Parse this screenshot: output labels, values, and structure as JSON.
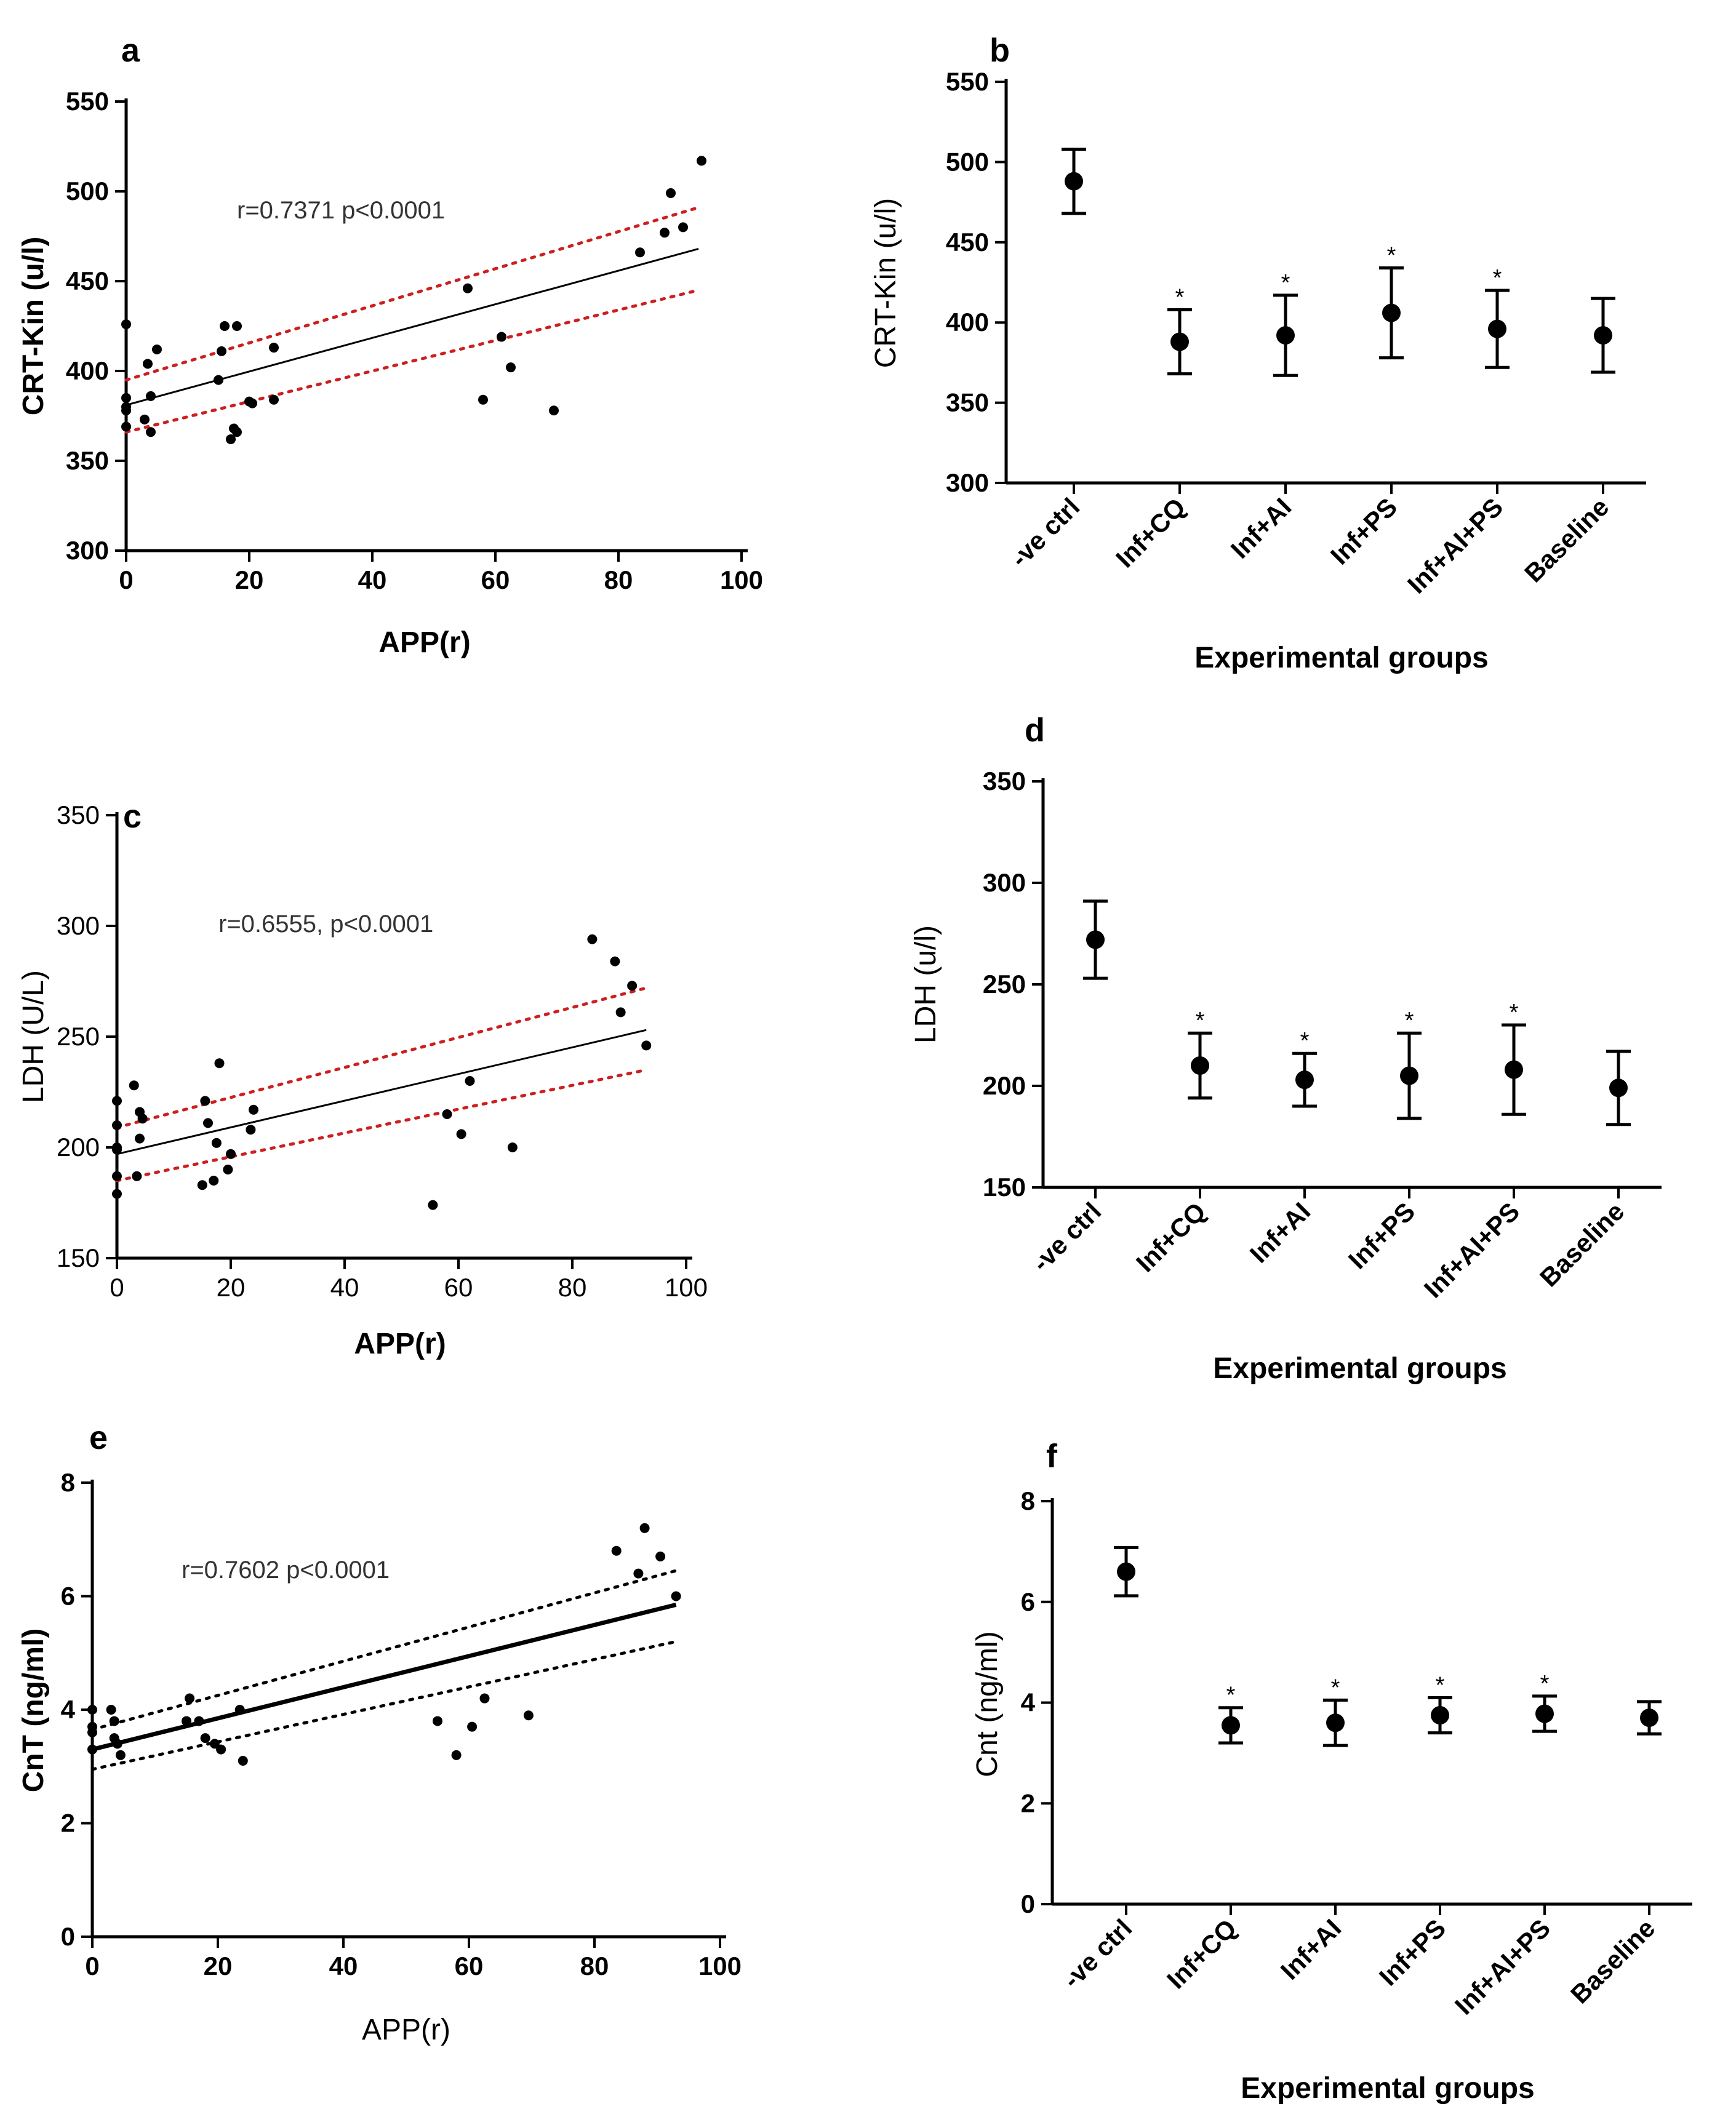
{
  "chart_data": [
    {
      "panel": "a",
      "type": "scatter",
      "xlabel": "APP(r)",
      "ylabel": "CRT-Kin (u/l)",
      "xlim": [
        0,
        100
      ],
      "ylim": [
        300,
        550
      ],
      "xticks": [
        0,
        20,
        40,
        60,
        80,
        100
      ],
      "yticks": [
        300,
        350,
        400,
        450,
        500,
        550
      ],
      "annotation": "r=0.7371 p<0.0001",
      "band_color": "#cc1f1f",
      "fit": {
        "x": [
          0,
          93
        ],
        "y": [
          381,
          468
        ]
      },
      "band_upper": {
        "x": [
          0,
          93
        ],
        "y": [
          395,
          491
        ]
      },
      "band_lower": {
        "x": [
          0,
          93
        ],
        "y": [
          366,
          445
        ]
      },
      "x": [
        0,
        0,
        0,
        0,
        0,
        3,
        3.5,
        4,
        4,
        5,
        15,
        15.5,
        16,
        17,
        17.5,
        18,
        18,
        20,
        20.5,
        24,
        24,
        55.5,
        58,
        61,
        62.5,
        69.5,
        83.5,
        87.5,
        88.5,
        90.5,
        93.5
      ],
      "y": [
        426,
        385,
        380,
        378,
        369,
        373,
        404,
        366,
        386,
        412,
        395,
        411,
        425,
        362,
        368,
        425,
        366,
        383,
        382,
        413,
        384,
        446,
        384,
        419,
        402,
        378,
        466,
        477,
        499,
        480,
        517
      ]
    },
    {
      "panel": "b",
      "type": "errorbar",
      "xlabel": "Experimental groups",
      "ylabel": "CRT-Kin (u/l)",
      "ylim": [
        300,
        550
      ],
      "yticks": [
        300,
        350,
        400,
        450,
        500,
        550
      ],
      "categories": [
        "-ve ctrl",
        "Inf+CQ",
        "Inf+AI",
        "Inf+PS",
        "Inf+AI+PS",
        "Baseline"
      ],
      "values": [
        488,
        388,
        392,
        406,
        396,
        392
      ],
      "error": [
        20,
        20,
        25,
        28,
        24,
        23
      ],
      "significance": [
        "",
        "*",
        "*",
        "*",
        "*",
        ""
      ]
    },
    {
      "panel": "c",
      "type": "scatter",
      "xlabel": "APP(r)",
      "ylabel": "LDH (U/L)",
      "xlim": [
        0,
        100
      ],
      "ylim": [
        150,
        350
      ],
      "xticks": [
        0,
        20,
        40,
        60,
        80,
        100
      ],
      "yticks": [
        150,
        200,
        250,
        300,
        350
      ],
      "annotation": "r=0.6555, p<0.0001",
      "band_color": "#cc1f1f",
      "fit": {
        "x": [
          0,
          93
        ],
        "y": [
          197,
          253
        ]
      },
      "band_upper": {
        "x": [
          0,
          93
        ],
        "y": [
          209,
          272
        ]
      },
      "band_lower": {
        "x": [
          0,
          93
        ],
        "y": [
          185,
          235
        ]
      },
      "x": [
        0,
        0,
        0,
        0,
        0,
        0,
        3,
        3.5,
        4,
        4,
        4.5,
        15,
        15.5,
        16,
        17,
        17.5,
        18,
        19.5,
        20,
        23.5,
        24,
        55.5,
        58,
        60.5,
        62,
        69.5,
        83.5,
        87.5,
        88.5,
        90.5,
        93
      ],
      "y": [
        221,
        210,
        200,
        199,
        187,
        179,
        228,
        187,
        216,
        204,
        213,
        183,
        221,
        211,
        185,
        202,
        238,
        190,
        197,
        208,
        217,
        174,
        215,
        206,
        230,
        200,
        294,
        284,
        261,
        273,
        246
      ]
    },
    {
      "panel": "d",
      "type": "errorbar",
      "xlabel": "Experimental groups",
      "ylabel": "LDH (u/l)",
      "ylim": [
        150,
        350
      ],
      "yticks": [
        150,
        200,
        250,
        300,
        350
      ],
      "categories": [
        "-ve ctrl",
        "Inf+CQ",
        "Inf+AI",
        "Inf+PS",
        "Inf+AI+PS",
        "Baseline"
      ],
      "values": [
        272,
        210,
        203,
        205,
        208,
        199
      ],
      "error": [
        19,
        16,
        13,
        21,
        22,
        18
      ],
      "significance": [
        "",
        "*",
        "*",
        "*",
        "*",
        ""
      ]
    },
    {
      "panel": "e",
      "type": "scatter",
      "xlabel": "APP(r)",
      "ylabel": "CnT (ng/ml)",
      "xlim": [
        0,
        100
      ],
      "ylim": [
        0,
        8
      ],
      "xticks": [
        0,
        20,
        40,
        60,
        80,
        100
      ],
      "yticks": [
        0,
        2,
        4,
        6,
        8
      ],
      "annotation": "r=0.7602 p<0.0001",
      "band_color": "#000000",
      "fit": {
        "x": [
          0,
          93
        ],
        "y": [
          3.3,
          5.85
        ]
      },
      "band_upper": {
        "x": [
          0,
          93
        ],
        "y": [
          3.65,
          6.45
        ]
      },
      "band_lower": {
        "x": [
          0,
          93
        ],
        "y": [
          2.95,
          5.2
        ]
      },
      "x": [
        0,
        0,
        0,
        0,
        3,
        3.5,
        3.5,
        4,
        4.5,
        15,
        15.5,
        17,
        18,
        19.5,
        20.5,
        23.5,
        24,
        55,
        58,
        60.5,
        62.5,
        69.5,
        83.5,
        87,
        88,
        90.5,
        93
      ],
      "y": [
        4.0,
        3.7,
        3.6,
        3.3,
        4.0,
        3.8,
        3.5,
        3.4,
        3.2,
        3.8,
        4.2,
        3.8,
        3.5,
        3.4,
        3.3,
        4.0,
        3.1,
        3.8,
        3.2,
        3.7,
        4.2,
        3.9,
        6.8,
        6.4,
        7.2,
        6.7,
        6.0
      ]
    },
    {
      "panel": "f",
      "type": "errorbar",
      "xlabel": "Experimental groups",
      "ylabel": "Cnt (ng/ml)",
      "ylim": [
        0,
        8
      ],
      "yticks": [
        0,
        2,
        4,
        6,
        8
      ],
      "categories": [
        "-ve ctrl",
        "Inf+CQ",
        "Inf+AI",
        "Inf+PS",
        "Inf+AI+PS",
        "Baseline"
      ],
      "values": [
        6.6,
        3.55,
        3.6,
        3.75,
        3.78,
        3.7
      ],
      "error": [
        0.48,
        0.35,
        0.45,
        0.35,
        0.35,
        0.32
      ],
      "significance": [
        "",
        "*",
        "*",
        "*",
        "*",
        ""
      ]
    }
  ]
}
